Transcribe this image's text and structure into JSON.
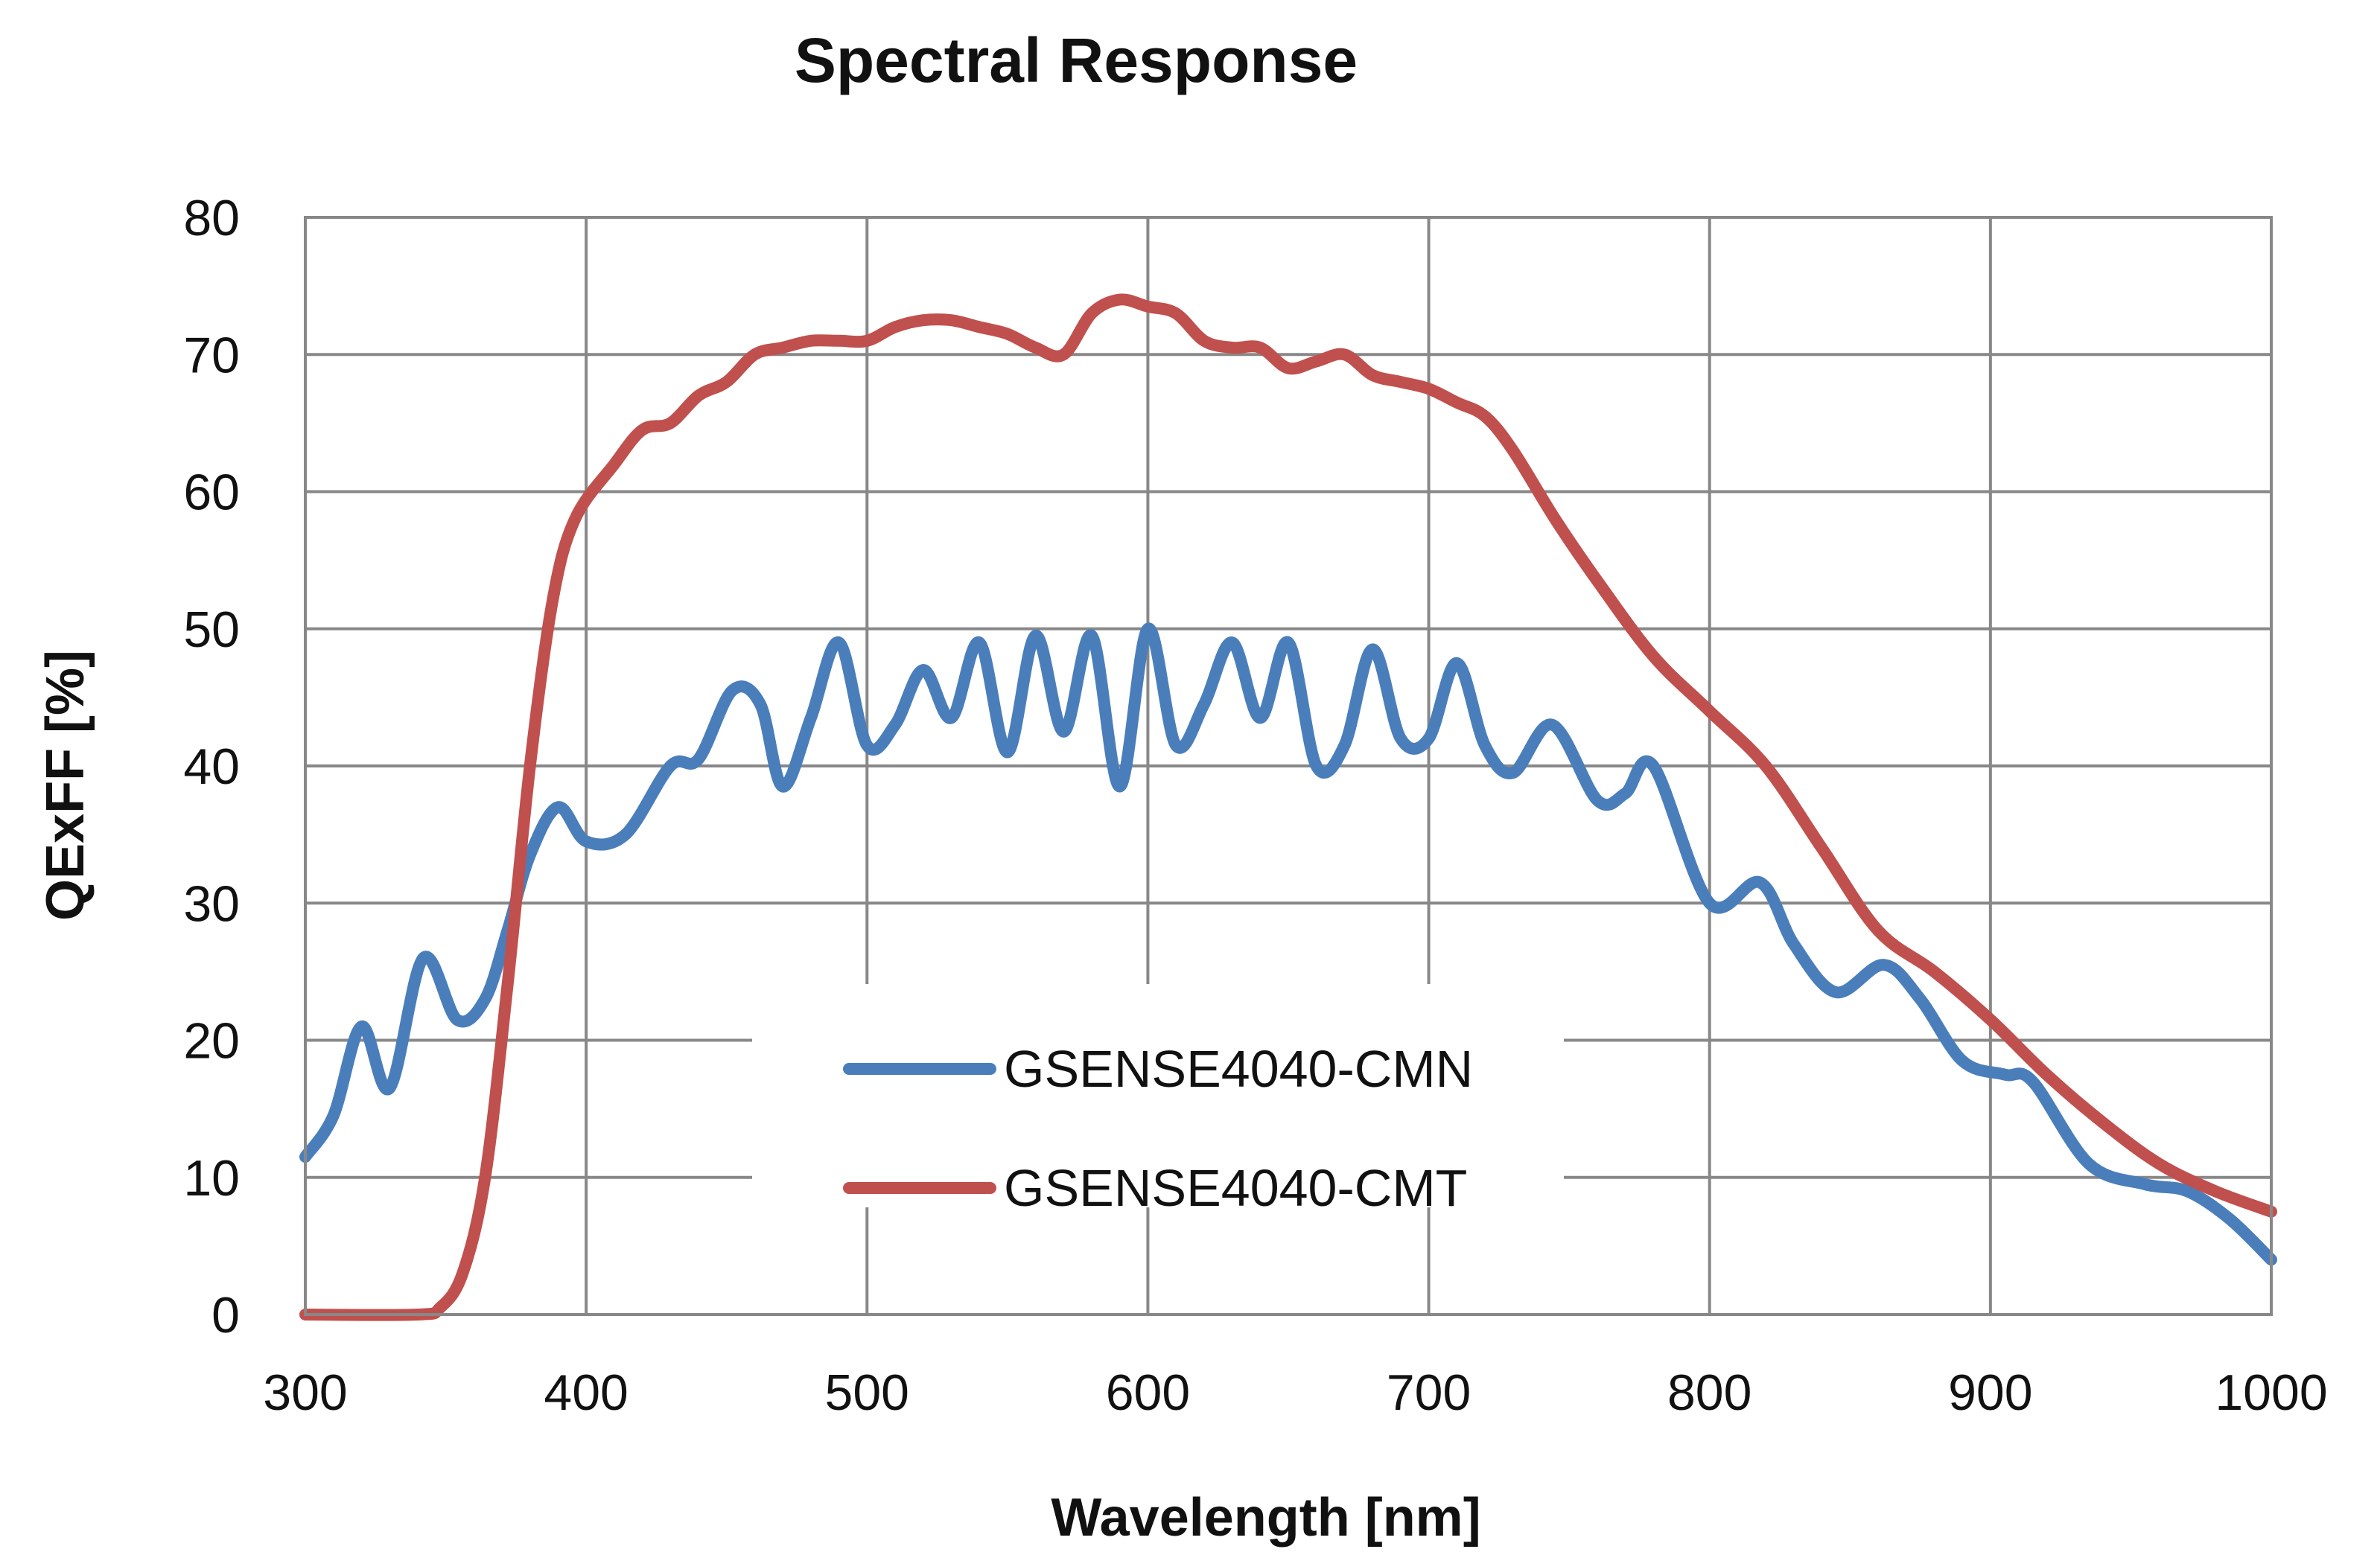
{
  "chart_data": {
    "type": "line",
    "title": "Spectral Response",
    "xlabel": "Wavelength [nm]",
    "ylabel": "QExFF [%]",
    "xlim": [
      300,
      1000
    ],
    "ylim": [
      0,
      80
    ],
    "xticks": [
      300,
      400,
      500,
      600,
      700,
      800,
      900,
      1000
    ],
    "yticks": [
      0,
      10,
      20,
      30,
      40,
      50,
      60,
      70,
      80
    ],
    "grid": true,
    "legend_position": "center-bottom",
    "series": [
      {
        "name": "GSENSE4040-CMN",
        "color": "#4a7ebb",
        "x": [
          300,
          310,
          320,
          330,
          342,
          354,
          364,
          372,
          380,
          390,
          400,
          414,
          430,
          440,
          452,
          462,
          470,
          480,
          490,
          500,
          510,
          520,
          530,
          540,
          550,
          560,
          570,
          580,
          590,
          600,
          610,
          620,
          630,
          640,
          650,
          660,
          670,
          680,
          690,
          700,
          710,
          720,
          730,
          744,
          760,
          770,
          780,
          800,
          818,
          830,
          845,
          862,
          875,
          890,
          905,
          915,
          935,
          955,
          970,
          985,
          1000
        ],
        "y": [
          11.5,
          14.5,
          21,
          16.5,
          26,
          21.5,
          23,
          28,
          33.5,
          37,
          34.5,
          35,
          40,
          40.5,
          45.5,
          44.5,
          38.5,
          43.5,
          49,
          41.5,
          43,
          47,
          43.5,
          49,
          41,
          49.5,
          42.5,
          49.5,
          38.5,
          50,
          41.5,
          44.5,
          49,
          43.5,
          49,
          40,
          41.5,
          48.5,
          42,
          42,
          47.5,
          41.5,
          39.5,
          43,
          37.5,
          38,
          40,
          30,
          31.5,
          27,
          23.5,
          25.5,
          23,
          18.5,
          17.5,
          17,
          11,
          9.5,
          9,
          7,
          4
        ]
      },
      {
        "name": "GSENSE4040-CMT",
        "color": "#c0504d",
        "x": [
          300,
          340,
          348,
          356,
          364,
          372,
          380,
          388,
          396,
          410,
          420,
          430,
          440,
          450,
          460,
          470,
          480,
          490,
          500,
          510,
          520,
          530,
          540,
          550,
          560,
          570,
          580,
          590,
          600,
          610,
          620,
          630,
          640,
          650,
          660,
          670,
          680,
          690,
          700,
          710,
          720,
          730,
          745,
          760,
          780,
          800,
          820,
          840,
          860,
          880,
          900,
          920,
          940,
          960,
          980,
          1000
        ],
        "y": [
          0,
          0,
          0.5,
          3,
          10,
          24,
          40,
          52,
          58,
          62,
          64.5,
          65,
          67,
          68,
          70,
          70.5,
          71,
          71,
          71,
          72,
          72.5,
          72.5,
          72,
          71.5,
          70.5,
          70,
          73,
          74,
          73.5,
          73,
          71,
          70.5,
          70.5,
          69,
          69.5,
          70,
          68.5,
          68,
          67.5,
          66.5,
          65.5,
          63,
          58,
          53.5,
          48,
          44,
          40,
          34,
          28,
          25,
          21.5,
          17.5,
          14,
          11,
          9,
          7.5
        ]
      }
    ]
  }
}
